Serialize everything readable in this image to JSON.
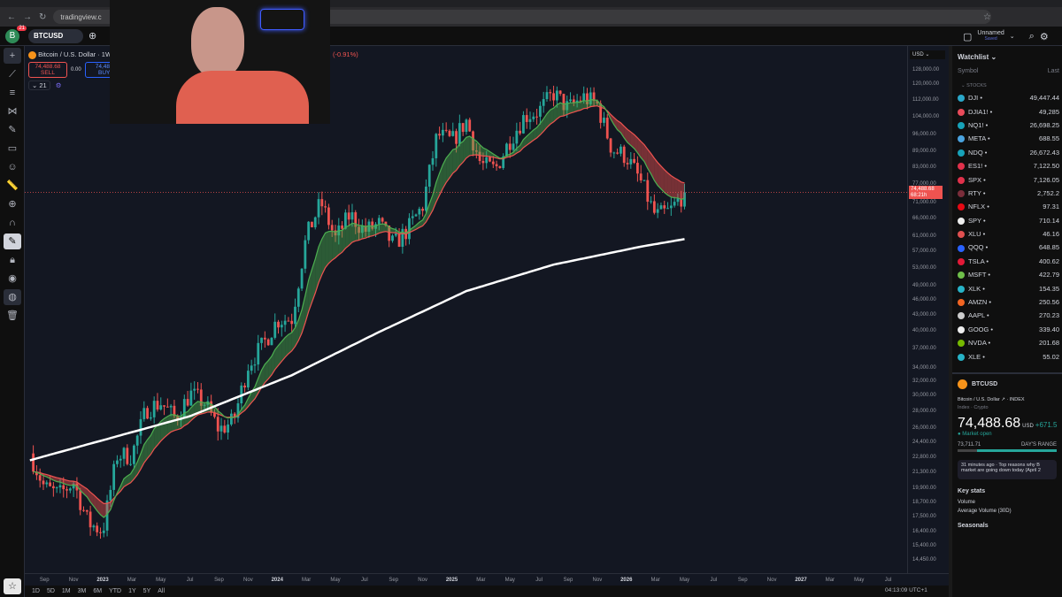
{
  "browser": {
    "url": "tradingview.c"
  },
  "header": {
    "badge_count": "21",
    "symbol": "BTCUSD",
    "layout_name": "Unnamed",
    "layout_status": "Saved"
  },
  "legend": {
    "title": "Bitcoin / U.S. Dollar · 1W",
    "change": "(-0.91%)",
    "sell_price": "74,488.68",
    "sell_label": "SELL",
    "spread": "0.00",
    "buy_price": "74,488",
    "buy_label": "BUY",
    "indicator_count": "21"
  },
  "price_axis": {
    "currency": "USD",
    "current_price": "74,488.68",
    "countdown": "68:21h",
    "ticks": [
      "128,000.00",
      "120,000.00",
      "112,000.00",
      "104,000.00",
      "96,000.00",
      "89,000.00",
      "83,000.00",
      "77,000.00",
      "71,000.00",
      "66,000.00",
      "61,000.00",
      "57,000.00",
      "53,000.00",
      "49,000.00",
      "46,000.00",
      "43,000.00",
      "40,000.00",
      "37,000.00",
      "34,000.00",
      "32,000.00",
      "30,000.00",
      "28,000.00",
      "26,000.00",
      "24,400.00",
      "22,800.00",
      "21,300.00",
      "19,900.00",
      "18,700.00",
      "17,500.00",
      "16,400.00",
      "15,400.00",
      "14,450.00"
    ]
  },
  "time_axis": {
    "ticks": [
      "Sep",
      "Nov",
      "2023",
      "Mar",
      "May",
      "Jul",
      "Sep",
      "Nov",
      "2024",
      "Mar",
      "May",
      "Jul",
      "Sep",
      "Nov",
      "2025",
      "Mar",
      "May",
      "Jul",
      "Sep",
      "Nov",
      "2026",
      "Mar",
      "May",
      "Jul",
      "Sep",
      "Nov",
      "2027",
      "Mar",
      "May",
      "Jul"
    ],
    "clock": "04:13:09 UTC+1"
  },
  "ranges": [
    "1D",
    "5D",
    "1M",
    "3M",
    "6M",
    "YTD",
    "1Y",
    "5Y",
    "All"
  ],
  "watchlist": {
    "title": "Watchlist",
    "col_symbol": "Symbol",
    "col_last": "Last",
    "section": "STOCKS",
    "items": [
      {
        "symbol": "DJI",
        "last": "49,447.44",
        "color": "#2aa7c9"
      },
      {
        "symbol": "DJIA1!",
        "last": "49,285",
        "color": "#e94b5a"
      },
      {
        "symbol": "NQ1!",
        "last": "26,698.25",
        "color": "#17a2b8"
      },
      {
        "symbol": "META",
        "last": "688.55",
        "color": "#4aa3df"
      },
      {
        "symbol": "NDQ",
        "last": "26,672.43",
        "color": "#17a2b8"
      },
      {
        "symbol": "ES1!",
        "last": "7,122.50",
        "color": "#e0314b"
      },
      {
        "symbol": "SPX",
        "last": "7,126.05",
        "color": "#e0314b"
      },
      {
        "symbol": "RTY",
        "last": "2,752.2",
        "color": "#7a2d3a"
      },
      {
        "symbol": "NFLX",
        "last": "97.31",
        "color": "#e50914"
      },
      {
        "symbol": "SPY",
        "last": "710.14",
        "color": "#eeeeee"
      },
      {
        "symbol": "XLU",
        "last": "46.16",
        "color": "#e05050"
      },
      {
        "symbol": "QQQ",
        "last": "648.85",
        "color": "#2962ff"
      },
      {
        "symbol": "TSLA",
        "last": "400.62",
        "color": "#e31937"
      },
      {
        "symbol": "MSFT",
        "last": "422.79",
        "color": "#6fbf4a"
      },
      {
        "symbol": "XLK",
        "last": "154.35",
        "color": "#27b3c7"
      },
      {
        "symbol": "AMZN",
        "last": "250.56",
        "color": "#f26522"
      },
      {
        "symbol": "AAPL",
        "last": "270.23",
        "color": "#cccccc"
      },
      {
        "symbol": "GOOG",
        "last": "339.40",
        "color": "#eeeeee"
      },
      {
        "symbol": "NVDA",
        "last": "201.68",
        "color": "#76b900"
      },
      {
        "symbol": "XLE",
        "last": "55.02",
        "color": "#27b3c7"
      }
    ]
  },
  "details": {
    "symbol": "BTCUSD",
    "name": "Bitcoin / U.S. Dollar",
    "exchange": "INDEX",
    "type": "Index · Crypto",
    "price": "74,488.68",
    "currency": "USD",
    "change": "+671.5",
    "status": "Market open",
    "day_low": "73,711.71",
    "range_label": "DAY'S RANGE",
    "news": "31 minutes ago · Top reasons why B market are going down today (April 2",
    "key_stats": "Key stats",
    "volume": "Volume",
    "avg_volume": "Average Volume (30D)",
    "seasonals": "Seasonals"
  },
  "colors": {
    "up": "#26a69a",
    "down": "#ef5350",
    "ma_fast": "#4caf50",
    "ma_slow": "#ef5350",
    "long_ma": "#ffffff",
    "accent": "#2962ff"
  },
  "chart_data": {
    "type": "candlestick",
    "scale": "log",
    "interval": "weekly",
    "monthly_closes": [
      [
        "2022-07",
        23300
      ],
      [
        "2022-08",
        20000
      ],
      [
        "2022-09",
        19400
      ],
      [
        "2022-10",
        20500
      ],
      [
        "2022-11",
        17100
      ],
      [
        "2022-12",
        16500
      ],
      [
        "2023-01",
        23100
      ],
      [
        "2023-02",
        23100
      ],
      [
        "2023-03",
        28400
      ],
      [
        "2023-04",
        29200
      ],
      [
        "2023-05",
        27200
      ],
      [
        "2023-06",
        30400
      ],
      [
        "2023-07",
        29200
      ],
      [
        "2023-08",
        25900
      ],
      [
        "2023-09",
        26900
      ],
      [
        "2023-10",
        34600
      ],
      [
        "2023-11",
        37700
      ],
      [
        "2023-12",
        42200
      ],
      [
        "2024-01",
        42500
      ],
      [
        "2024-02",
        61100
      ],
      [
        "2024-03",
        71300
      ],
      [
        "2024-04",
        60600
      ],
      [
        "2024-05",
        67500
      ],
      [
        "2024-06",
        62700
      ],
      [
        "2024-07",
        64600
      ],
      [
        "2024-08",
        58900
      ],
      [
        "2024-09",
        63300
      ],
      [
        "2024-10",
        70200
      ],
      [
        "2024-11",
        96400
      ],
      [
        "2024-12",
        93400
      ],
      [
        "2025-01",
        102400
      ],
      [
        "2025-02",
        84300
      ],
      [
        "2025-03",
        82500
      ],
      [
        "2025-04",
        94200
      ],
      [
        "2025-05",
        104600
      ],
      [
        "2025-06",
        107100
      ],
      [
        "2025-07",
        115700
      ],
      [
        "2025-08",
        108200
      ],
      [
        "2025-09",
        114000
      ],
      [
        "2025-10",
        110000
      ],
      [
        "2025-11",
        90400
      ],
      [
        "2025-12",
        87500
      ],
      [
        "2026-01",
        78000
      ],
      [
        "2026-02",
        67000
      ],
      [
        "2026-03",
        68500
      ],
      [
        "2026-04",
        74488.68
      ]
    ],
    "long_ma": [
      [
        "2022-07",
        22600
      ],
      [
        "2023-06",
        27500
      ],
      [
        "2024-01",
        33000
      ],
      [
        "2024-07",
        40000
      ],
      [
        "2025-01",
        48000
      ],
      [
        "2025-07",
        54000
      ],
      [
        "2026-01",
        58500
      ],
      [
        "2026-04",
        60500
      ]
    ],
    "ylim": [
      14450,
      128000
    ],
    "xlim": [
      "2022-08",
      "2027-08"
    ]
  }
}
